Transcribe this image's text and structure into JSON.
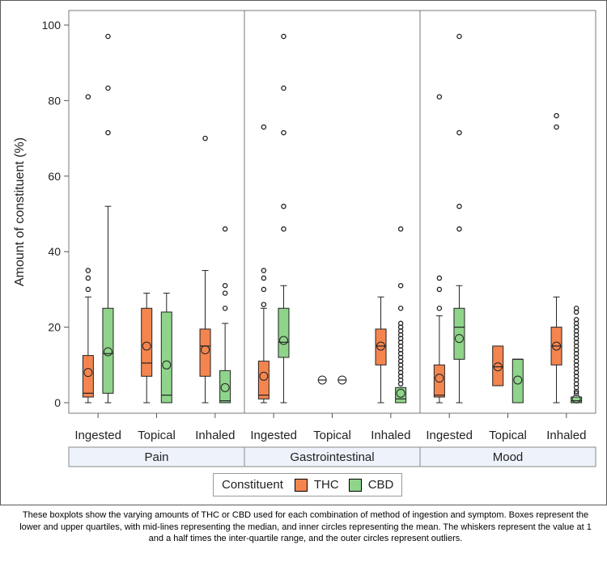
{
  "chart_data": {
    "type": "boxplot",
    "ylabel": "Amount of constituent (%)",
    "ylim": [
      0,
      100
    ],
    "yticks": [
      "0",
      "20",
      "40",
      "60",
      "80",
      "100"
    ],
    "groups": [
      "Pain",
      "Gastrointestinal",
      "Mood"
    ],
    "methods": [
      "Ingested",
      "Topical",
      "Inhaled"
    ],
    "legend_title": "Constituent",
    "series": [
      {
        "name": "THC",
        "color": "#f4854f"
      },
      {
        "name": "CBD",
        "color": "#8fd48a"
      }
    ],
    "boxes": [
      {
        "group": "Pain",
        "method": "Ingested",
        "constituent": "THC",
        "min": 0,
        "q1": 1.5,
        "median": 2.5,
        "q3": 12.5,
        "max": 28,
        "mean": 8,
        "outliers": [
          30,
          33,
          35,
          81
        ]
      },
      {
        "group": "Pain",
        "method": "Ingested",
        "constituent": "CBD",
        "min": 0,
        "q1": 2.5,
        "median": 13,
        "q3": 25,
        "max": 52,
        "mean": 13.5,
        "outliers": [
          71.5,
          83.3,
          97
        ]
      },
      {
        "group": "Pain",
        "method": "Topical",
        "constituent": "THC",
        "min": 0,
        "q1": 7,
        "median": 10.5,
        "q3": 25,
        "max": 29,
        "mean": 15,
        "outliers": []
      },
      {
        "group": "Pain",
        "method": "Topical",
        "constituent": "CBD",
        "min": 0,
        "q1": 0,
        "median": 2,
        "q3": 24,
        "max": 29,
        "mean": 10,
        "outliers": []
      },
      {
        "group": "Pain",
        "method": "Inhaled",
        "constituent": "THC",
        "min": 0,
        "q1": 7,
        "median": 15,
        "q3": 19.5,
        "max": 35,
        "mean": 14,
        "outliers": [
          70
        ]
      },
      {
        "group": "Pain",
        "method": "Inhaled",
        "constituent": "CBD",
        "min": 0,
        "q1": 0,
        "median": 0.5,
        "q3": 8.5,
        "max": 21,
        "mean": 4,
        "outliers": [
          25,
          29,
          31,
          46
        ]
      },
      {
        "group": "Gastrointestinal",
        "method": "Ingested",
        "constituent": "THC",
        "min": 0,
        "q1": 1,
        "median": 2,
        "q3": 11,
        "max": 25,
        "mean": 7,
        "outliers": [
          26,
          30,
          33,
          35,
          73
        ]
      },
      {
        "group": "Gastrointestinal",
        "method": "Ingested",
        "constituent": "CBD",
        "min": 0,
        "q1": 12,
        "median": 16,
        "q3": 25,
        "max": 31,
        "mean": 16.5,
        "outliers": [
          46,
          52,
          71.5,
          83.3,
          97
        ]
      },
      {
        "group": "Gastrointestinal",
        "method": "Topical",
        "constituent": "THC",
        "min": 6,
        "q1": 6,
        "median": 6,
        "q3": 6,
        "max": 6,
        "mean": 6,
        "outliers": []
      },
      {
        "group": "Gastrointestinal",
        "method": "Topical",
        "constituent": "CBD",
        "min": 6,
        "q1": 6,
        "median": 6,
        "q3": 6,
        "max": 6,
        "mean": 6,
        "outliers": []
      },
      {
        "group": "Gastrointestinal",
        "method": "Inhaled",
        "constituent": "THC",
        "min": 0,
        "q1": 10,
        "median": 15,
        "q3": 19.5,
        "max": 28,
        "mean": 15,
        "outliers": []
      },
      {
        "group": "Gastrointestinal",
        "method": "Inhaled",
        "constituent": "CBD",
        "min": 0,
        "q1": 0,
        "median": 1,
        "q3": 4,
        "max": 4,
        "mean": 2.5,
        "outliers": [
          5,
          6,
          7,
          8,
          9,
          10,
          11,
          12,
          13,
          14,
          15,
          16,
          17,
          18,
          19,
          20,
          21,
          25,
          31,
          46
        ]
      },
      {
        "group": "Mood",
        "method": "Ingested",
        "constituent": "THC",
        "min": 0,
        "q1": 1.5,
        "median": 2,
        "q3": 10,
        "max": 23,
        "mean": 6.5,
        "outliers": [
          25,
          30,
          33,
          81
        ]
      },
      {
        "group": "Mood",
        "method": "Ingested",
        "constituent": "CBD",
        "min": 0,
        "q1": 11.5,
        "median": 20,
        "q3": 25,
        "max": 31,
        "mean": 17,
        "outliers": [
          46,
          52,
          71.5,
          97
        ]
      },
      {
        "group": "Mood",
        "method": "Topical",
        "constituent": "THC",
        "min": 4.5,
        "q1": 4.5,
        "median": 9.5,
        "q3": 15,
        "max": 15,
        "mean": 9.5,
        "outliers": []
      },
      {
        "group": "Mood",
        "method": "Topical",
        "constituent": "CBD",
        "min": 0,
        "q1": 0,
        "median": 11.5,
        "q3": 11.5,
        "max": 11.5,
        "mean": 6,
        "outliers": []
      },
      {
        "group": "Mood",
        "method": "Inhaled",
        "constituent": "THC",
        "min": 0,
        "q1": 10,
        "median": 15,
        "q3": 20,
        "max": 28,
        "mean": 15,
        "outliers": [
          73,
          76
        ]
      },
      {
        "group": "Mood",
        "method": "Inhaled",
        "constituent": "CBD",
        "min": 0,
        "q1": 0,
        "median": 0.5,
        "q3": 1.5,
        "max": 1.5,
        "mean": 1,
        "outliers": [
          2.5,
          3,
          4,
          5,
          6,
          7,
          8,
          9,
          10,
          11,
          12,
          13,
          14,
          15,
          16,
          17,
          18,
          19,
          20,
          21,
          22,
          24,
          25
        ]
      }
    ]
  },
  "caption": "These boxplots show the varying amounts of THC or CBD used for each combination of method of ingestion and symptom. Boxes represent the lower and upper quartiles, with mid-lines representing the median, and inner circles representing the mean. The whiskers represent the value at 1 and a half times the inter-quartile range, and the outer circles represent outliers."
}
